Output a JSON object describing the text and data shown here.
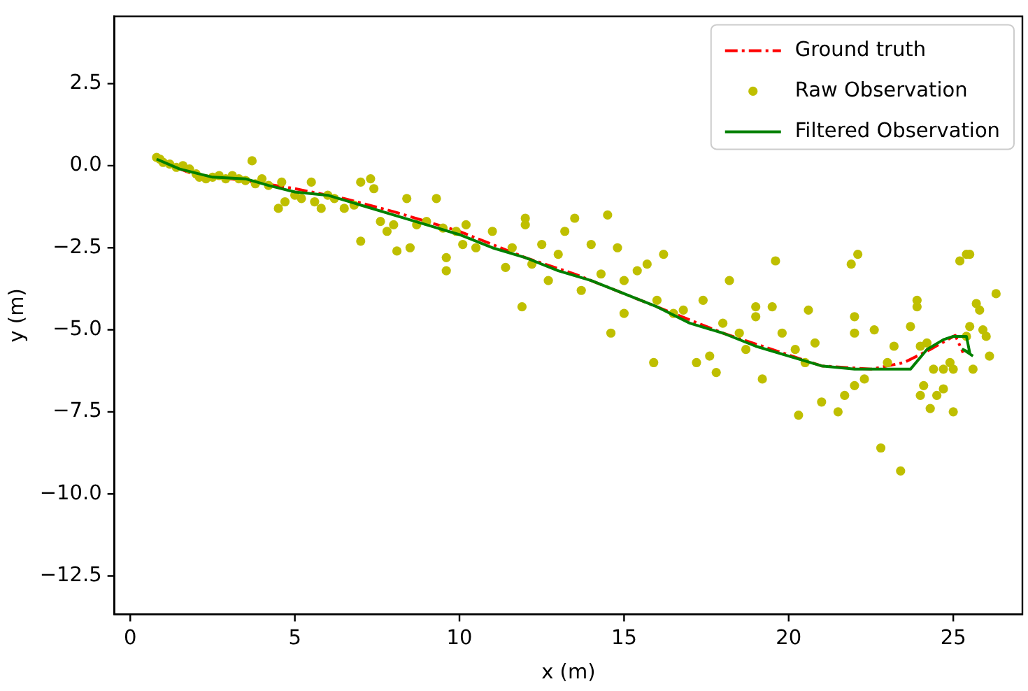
{
  "chart_data": {
    "type": "scatter",
    "xlabel": "x (m)",
    "ylabel": "y (m)",
    "xlim": [
      -0.48,
      27.1
    ],
    "ylim": [
      -13.67,
      4.55
    ],
    "xticks": [
      0,
      5,
      10,
      15,
      20,
      25
    ],
    "yticks": [
      2.5,
      {
        "value": 0,
        "label": "0.0"
      },
      {
        "value": -2.5,
        "label": "−2.5"
      },
      {
        "value": -5,
        "label": "−5.0"
      },
      {
        "value": -7.5,
        "label": "−7.5"
      },
      {
        "value": -10,
        "label": "−10.0"
      },
      {
        "value": -12.5,
        "label": "−12.5"
      }
    ],
    "grid": false,
    "legend": "top right",
    "series": [
      {
        "name": "Ground truth",
        "type": "line",
        "line_style": "dashed",
        "marker": "none",
        "color": "#ff0000",
        "x": [
          0.8,
          2,
          3.5,
          5,
          6.5,
          8,
          10,
          12,
          13.5,
          15,
          16.5,
          18,
          19.5,
          21,
          22.5,
          23.5,
          24.3,
          25.06,
          25.3
        ],
        "values": [
          0.2,
          -0.3,
          -0.45,
          -0.7,
          -1.0,
          -1.4,
          -2.0,
          -2.8,
          -3.3,
          -3.9,
          -4.5,
          -5.1,
          -5.6,
          -6.1,
          -6.2,
          -6.0,
          -5.6,
          -5.17,
          -5.7
        ]
      },
      {
        "name": "Raw Observation",
        "marker": "circle",
        "color": "#bfbf00",
        "x": [
          0.8,
          0.9,
          1.0,
          1.2,
          1.4,
          1.6,
          1.8,
          2.0,
          2.1,
          2.3,
          2.5,
          2.7,
          2.9,
          3.1,
          3.3,
          3.5,
          3.7,
          3.8,
          4.0,
          4.2,
          4.5,
          4.6,
          4.7,
          5.0,
          5.2,
          5.5,
          5.6,
          5.8,
          6.0,
          6.2,
          6.5,
          6.8,
          7.0,
          7.0,
          7.3,
          7.4,
          7.6,
          7.8,
          8.0,
          8.1,
          8.4,
          8.5,
          8.7,
          9.0,
          9.3,
          9.5,
          9.6,
          9.6,
          9.9,
          10.1,
          10.2,
          10.5,
          11.0,
          11.4,
          11.6,
          11.9,
          12.0,
          12.0,
          12.2,
          12.5,
          12.7,
          13.0,
          13.2,
          13.5,
          13.7,
          14.0,
          14.3,
          14.5,
          14.8,
          15.0,
          15.0,
          14.6,
          15.4,
          15.7,
          15.9,
          16.0,
          16.2,
          16.5,
          16.8,
          17.2,
          17.4,
          17.6,
          17.8,
          18.0,
          18.2,
          18.5,
          18.7,
          19.0,
          19.0,
          19.2,
          19.5,
          19.6,
          19.8,
          20.2,
          20.3,
          20.5,
          20.6,
          20.8,
          21.0,
          21.5,
          21.7,
          22.0,
          21.9,
          22.1,
          22.0,
          22.0,
          22.3,
          22.6,
          22.8,
          23.0,
          23.2,
          23.4,
          23.7,
          23.9,
          23.9,
          24.0,
          24.0,
          24.1,
          24.2,
          24.3,
          24.4,
          24.5,
          24.7,
          24.7,
          24.9,
          25.0,
          25.0,
          25.2,
          25.4,
          25.5,
          25.4,
          25.5,
          25.6,
          25.7,
          25.8,
          25.9,
          26.0,
          26.1,
          26.3
        ],
        "values": [
          0.25,
          0.2,
          0.1,
          0.05,
          -0.05,
          0.0,
          -0.1,
          -0.25,
          -0.35,
          -0.4,
          -0.35,
          -0.3,
          -0.4,
          -0.3,
          -0.4,
          -0.45,
          0.15,
          -0.55,
          -0.4,
          -0.6,
          -1.3,
          -0.5,
          -1.1,
          -0.9,
          -1.0,
          -0.5,
          -1.1,
          -1.3,
          -0.9,
          -1.0,
          -1.3,
          -1.2,
          -2.3,
          -0.5,
          -0.4,
          -0.7,
          -1.7,
          -2.0,
          -1.8,
          -2.6,
          -1.0,
          -2.5,
          -1.8,
          -1.7,
          -1.0,
          -1.9,
          -2.8,
          -3.2,
          -2.0,
          -2.4,
          -1.8,
          -2.5,
          -2.0,
          -3.1,
          -2.5,
          -4.3,
          -1.6,
          -1.8,
          -3.0,
          -2.4,
          -3.5,
          -2.7,
          -2.0,
          -1.6,
          -3.8,
          -2.4,
          -3.3,
          -1.5,
          -2.5,
          -3.5,
          -4.5,
          -5.1,
          -3.2,
          -3.0,
          -6.0,
          -4.1,
          -2.7,
          -4.5,
          -4.4,
          -6.0,
          -4.1,
          -5.8,
          -6.3,
          -4.8,
          -3.5,
          -5.1,
          -5.6,
          -4.3,
          -4.6,
          -6.5,
          -4.3,
          -2.9,
          -5.1,
          -5.6,
          -7.6,
          -6.0,
          -4.4,
          -5.4,
          -7.2,
          -7.5,
          -7.0,
          -6.7,
          -3.0,
          -2.7,
          -4.6,
          -5.1,
          -6.5,
          -5.0,
          -8.6,
          -6.0,
          -5.5,
          -9.3,
          -4.9,
          -4.3,
          -4.1,
          -5.5,
          -7.0,
          -6.7,
          -5.4,
          -7.4,
          -6.2,
          -7.0,
          -6.8,
          -6.2,
          -6.0,
          -6.2,
          -7.5,
          -2.9,
          -2.7,
          -2.7,
          -5.2,
          -4.9,
          -6.2,
          -4.2,
          -4.4,
          -5.0,
          -5.2,
          -5.8,
          -3.9
        ]
      },
      {
        "name": "Filtered Observation",
        "type": "line",
        "line_style": "solid",
        "marker": "none",
        "color": "#008000",
        "x": [
          0.8,
          1.5,
          2.5,
          3.5,
          4.2,
          5.0,
          6.0,
          7.0,
          8.0,
          9.0,
          10.0,
          11.0,
          12.0,
          13.0,
          14.0,
          15.0,
          16.0,
          17.0,
          18.0,
          19.0,
          20.0,
          21.0,
          22.0,
          23.0,
          23.7,
          24.2,
          24.7,
          25.0,
          25.4,
          25.5,
          25.3,
          25.6
        ],
        "values": [
          0.2,
          -0.1,
          -0.35,
          -0.4,
          -0.6,
          -0.8,
          -0.9,
          -1.2,
          -1.5,
          -1.8,
          -2.1,
          -2.5,
          -2.8,
          -3.2,
          -3.5,
          -3.9,
          -4.3,
          -4.8,
          -5.1,
          -5.5,
          -5.8,
          -6.1,
          -6.2,
          -6.2,
          -6.2,
          -5.6,
          -5.3,
          -5.2,
          -5.2,
          -5.7,
          -5.6,
          -5.8
        ]
      }
    ]
  }
}
